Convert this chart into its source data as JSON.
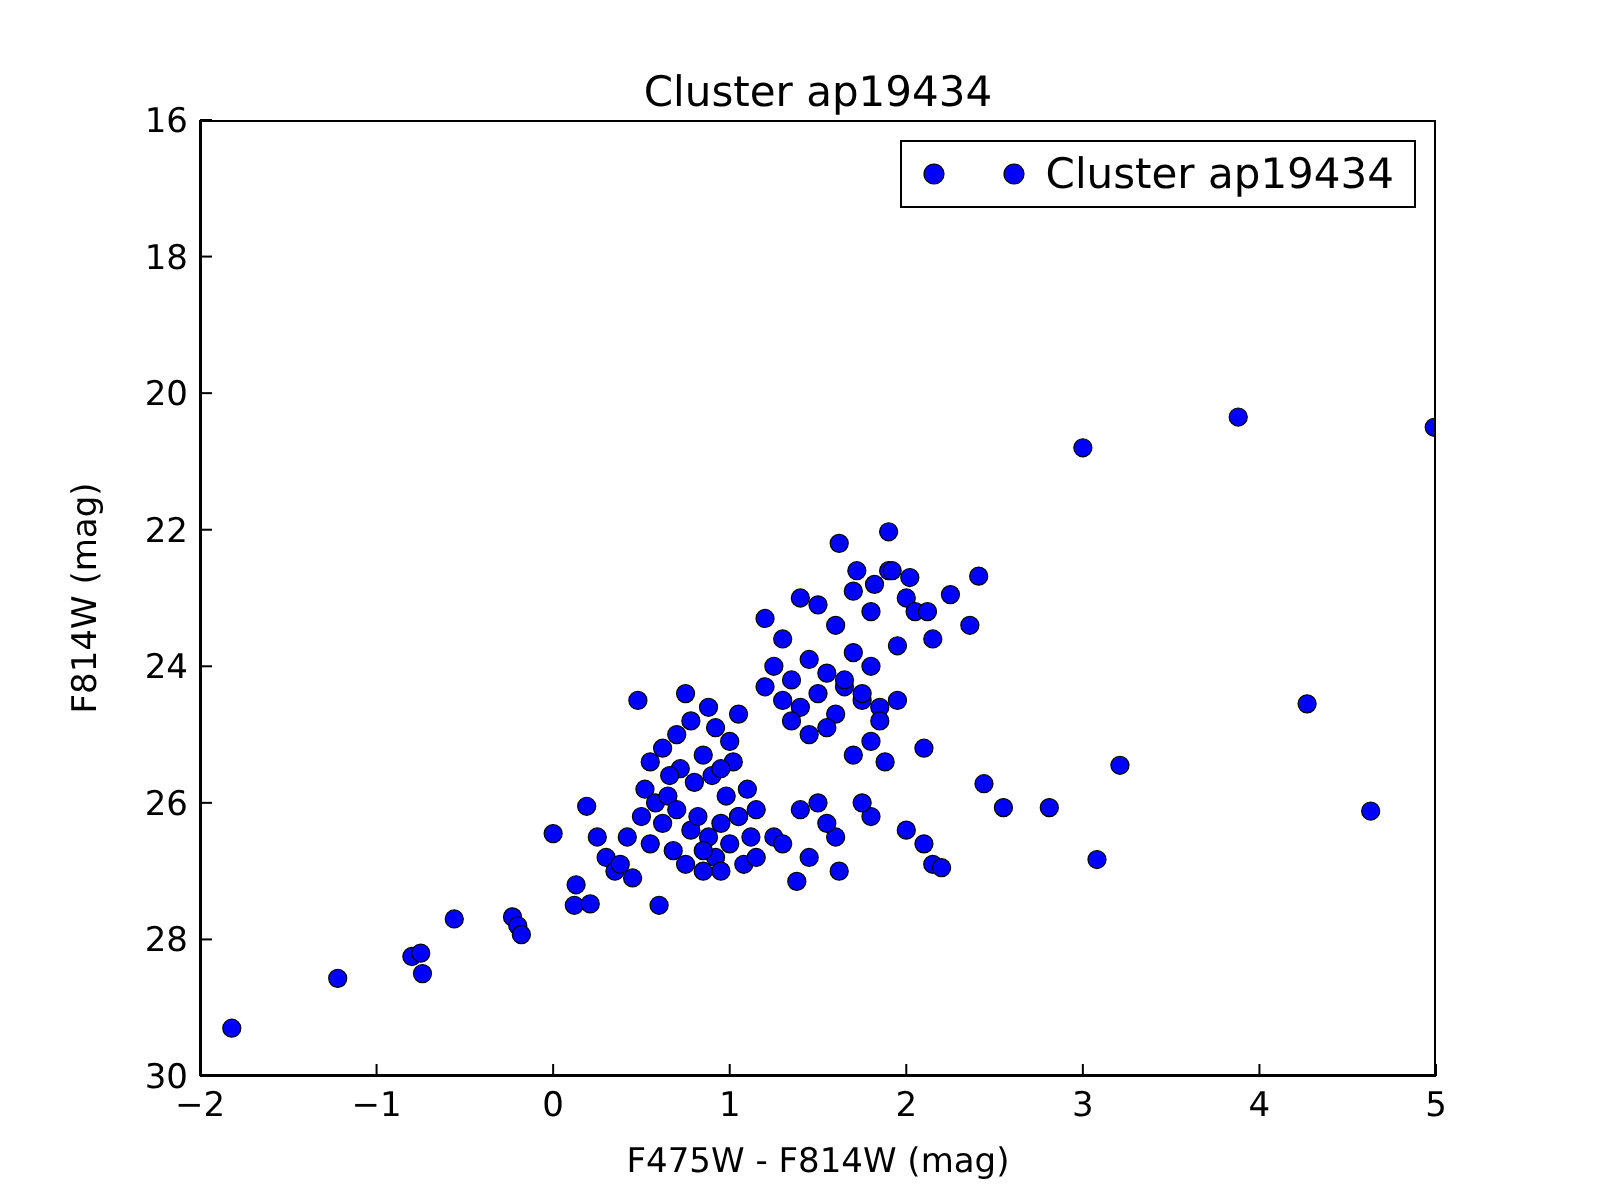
{
  "chart_data": {
    "type": "scatter",
    "title": "Cluster ap19434",
    "xlabel": "F475W - F814W (mag)",
    "ylabel": "F814W (mag)",
    "xlim": [
      -2,
      5
    ],
    "xticks": [
      -2,
      -1,
      0,
      1,
      2,
      3,
      4,
      5
    ],
    "ylim": [
      30,
      16
    ],
    "yticks": [
      16,
      18,
      20,
      22,
      24,
      26,
      28,
      30
    ],
    "legend": "top right",
    "marker": "circle",
    "series": [
      {
        "name": "Cluster ap19434",
        "color": "#0000ff",
        "x": [
          -1.82,
          -1.22,
          -0.8,
          -0.75,
          -0.74,
          -0.56,
          -0.23,
          -0.2,
          -0.18,
          0.0,
          0.13,
          0.12,
          0.21,
          0.19,
          3.0,
          3.88,
          4.99,
          4.27,
          3.21,
          3.08,
          4.63,
          2.81,
          2.55,
          2.44,
          2.41,
          2.36,
          2.25,
          1.9,
          0.25,
          0.3,
          0.35,
          0.38,
          0.42,
          0.45,
          0.5,
          0.52,
          0.55,
          0.58,
          0.6,
          0.62,
          0.65,
          0.68,
          0.7,
          0.72,
          0.75,
          0.78,
          0.8,
          0.82,
          0.85,
          0.88,
          0.9,
          0.92,
          0.95,
          0.98,
          1.0,
          1.02,
          1.05,
          1.08,
          1.1,
          1.12,
          1.15,
          0.55,
          0.62,
          0.7,
          0.78,
          0.85,
          0.92,
          1.0,
          0.48,
          0.75,
          0.88,
          1.05,
          0.66,
          0.95,
          1.2,
          1.25,
          1.3,
          1.35,
          1.4,
          1.45,
          1.5,
          1.55,
          1.6,
          1.65,
          1.7,
          1.75,
          1.8,
          1.85,
          1.2,
          1.3,
          1.4,
          1.5,
          1.6,
          1.7,
          1.8,
          1.9,
          2.0,
          1.35,
          1.45,
          1.55,
          1.65,
          1.75,
          1.85,
          1.95,
          2.05,
          1.62,
          1.72,
          1.82,
          1.92,
          2.02,
          2.12,
          1.7,
          1.8,
          1.88,
          1.95,
          2.1,
          2.15,
          1.4,
          1.5,
          1.6,
          1.8,
          2.0,
          2.1,
          2.15,
          2.2,
          1.45,
          1.55,
          1.75,
          1.38,
          1.62,
          1.25,
          1.05,
          0.95,
          0.85,
          1.15,
          1.3
        ],
        "values": [
          29.3,
          28.57,
          28.25,
          28.2,
          28.5,
          27.7,
          27.67,
          27.8,
          27.93,
          26.45,
          27.2,
          27.5,
          27.48,
          26.05,
          20.8,
          20.35,
          20.5,
          24.55,
          25.45,
          26.83,
          26.12,
          26.07,
          26.07,
          25.72,
          22.68,
          23.4,
          22.95,
          22.03,
          26.5,
          26.8,
          27.0,
          26.9,
          26.5,
          27.1,
          26.2,
          25.8,
          26.6,
          26.0,
          27.5,
          26.3,
          25.9,
          26.7,
          26.1,
          25.5,
          26.9,
          26.4,
          25.7,
          26.2,
          27.0,
          26.5,
          25.6,
          26.8,
          26.3,
          25.9,
          26.6,
          25.4,
          26.2,
          26.9,
          25.8,
          26.5,
          26.1,
          25.4,
          25.2,
          25.0,
          24.8,
          25.3,
          24.9,
          25.1,
          24.5,
          24.4,
          24.6,
          24.7,
          25.6,
          25.5,
          24.3,
          24.0,
          24.5,
          24.2,
          24.6,
          23.9,
          24.4,
          24.1,
          24.7,
          24.3,
          23.8,
          24.5,
          24.0,
          24.6,
          23.3,
          23.6,
          23.0,
          23.1,
          23.4,
          22.9,
          23.2,
          22.6,
          23.0,
          24.8,
          25.0,
          24.9,
          24.2,
          24.4,
          24.8,
          23.7,
          23.2,
          22.2,
          22.6,
          22.8,
          22.6,
          22.7,
          23.2,
          25.3,
          25.1,
          25.4,
          24.5,
          25.2,
          23.6,
          26.1,
          26.0,
          26.5,
          26.2,
          26.4,
          26.6,
          26.9,
          26.95,
          26.8,
          26.3,
          26.0,
          27.15,
          27.0,
          26.5,
          26.2,
          27.0,
          26.7,
          26.8,
          26.6
        ]
      }
    ]
  }
}
